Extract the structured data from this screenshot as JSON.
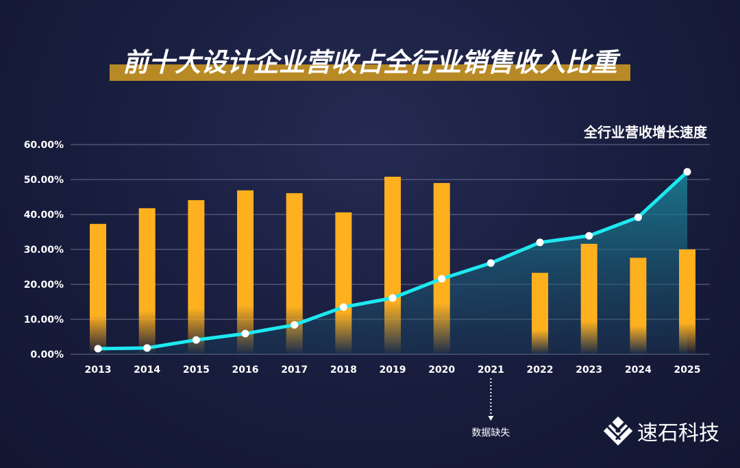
{
  "chart_data": {
    "type": "bar+line",
    "title": "前十大设计企业营收占全行业销售收入比重",
    "line_label": "全行业营收增长速度",
    "categories": [
      "2013",
      "2014",
      "2015",
      "2016",
      "2017",
      "2018",
      "2019",
      "2020",
      "2021",
      "2022",
      "2023",
      "2024",
      "2025"
    ],
    "series": [
      {
        "type": "bar",
        "values": [
          37.3,
          41.8,
          44.1,
          46.9,
          46.1,
          40.6,
          50.8,
          49.0,
          null,
          23.3,
          31.6,
          27.6,
          30.0
        ]
      },
      {
        "type": "line",
        "name": "全行业营收增长速度",
        "values": [
          1.6,
          1.8,
          4.1,
          5.9,
          8.4,
          13.5,
          16.1,
          21.6,
          26.1,
          32.0,
          33.9,
          39.2,
          52.2
        ]
      }
    ],
    "yticks": [
      "0.00%",
      "10.00%",
      "20.00%",
      "30.00%",
      "40.00%",
      "50.00%",
      "60.00%"
    ],
    "ylim": [
      0,
      60
    ],
    "grid": true,
    "annotation": {
      "category": "2021",
      "text": "数据缺失"
    },
    "colors": {
      "bar": "#ffb01f",
      "line": "#1ee8f0",
      "area": "#1b6f86",
      "title_underline": "#b88a26"
    }
  },
  "brand": {
    "name": "速石科技"
  }
}
